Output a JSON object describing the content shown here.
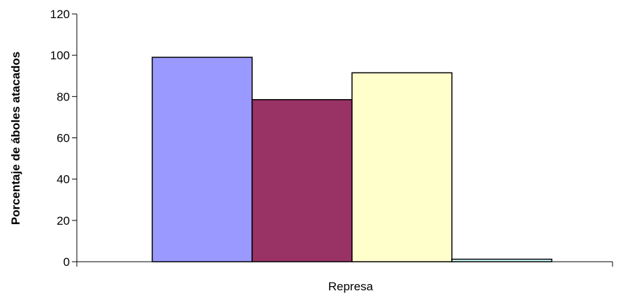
{
  "chart_data": {
    "type": "bar",
    "title": "",
    "xlabel": "Represa",
    "ylabel": "Porcentaje de áboles atacados",
    "categories": [
      "Represa"
    ],
    "series": [
      {
        "values": [
          99
        ],
        "color": "#9999ff"
      },
      {
        "values": [
          78.5
        ],
        "color": "#993366"
      },
      {
        "values": [
          91.5
        ],
        "color": "#ffffcc"
      },
      {
        "values": [
          1.2
        ],
        "color": "#ccffff"
      }
    ],
    "ylim": [
      0,
      120
    ],
    "yticks": [
      "0",
      "20",
      "40",
      "60",
      "80",
      "100",
      "120"
    ],
    "grid": false,
    "legend": "none"
  }
}
